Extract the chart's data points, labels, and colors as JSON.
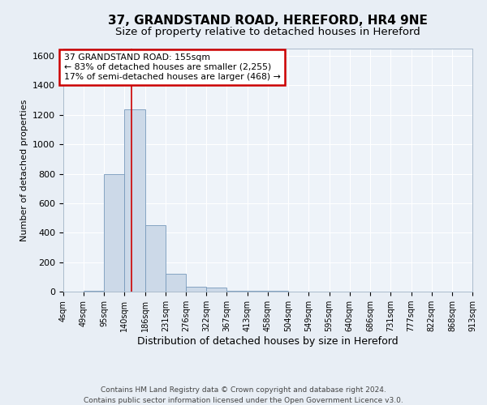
{
  "title1": "37, GRANDSTAND ROAD, HEREFORD, HR4 9NE",
  "title2": "Size of property relative to detached houses in Hereford",
  "xlabel": "Distribution of detached houses by size in Hereford",
  "ylabel": "Number of detached properties",
  "annotation_line1": "37 GRANDSTAND ROAD: 155sqm",
  "annotation_line2": "← 83% of detached houses are smaller (2,255)",
  "annotation_line3": "17% of semi-detached houses are larger (468) →",
  "footer1": "Contains HM Land Registry data © Crown copyright and database right 2024.",
  "footer2": "Contains public sector information licensed under the Open Government Licence v3.0.",
  "bin_edges": [
    4,
    49,
    95,
    140,
    186,
    231,
    276,
    322,
    367,
    413,
    458,
    504,
    549,
    595,
    640,
    686,
    731,
    777,
    822,
    868,
    913
  ],
  "bar_heights": [
    2,
    5,
    800,
    1240,
    450,
    120,
    35,
    30,
    5,
    5,
    5,
    0,
    0,
    0,
    0,
    0,
    0,
    0,
    0,
    0
  ],
  "bar_color": "#ccd9e8",
  "bar_edge_color": "#7799bb",
  "property_line_x": 155,
  "ylim": [
    0,
    1650
  ],
  "yticks": [
    0,
    200,
    400,
    600,
    800,
    1000,
    1200,
    1400,
    1600
  ],
  "bg_color": "#e8eef5",
  "plot_bg_color": "#eef3f9",
  "grid_color": "#ffffff",
  "annotation_box_color": "#cc0000",
  "title1_fontsize": 11,
  "title2_fontsize": 9.5
}
